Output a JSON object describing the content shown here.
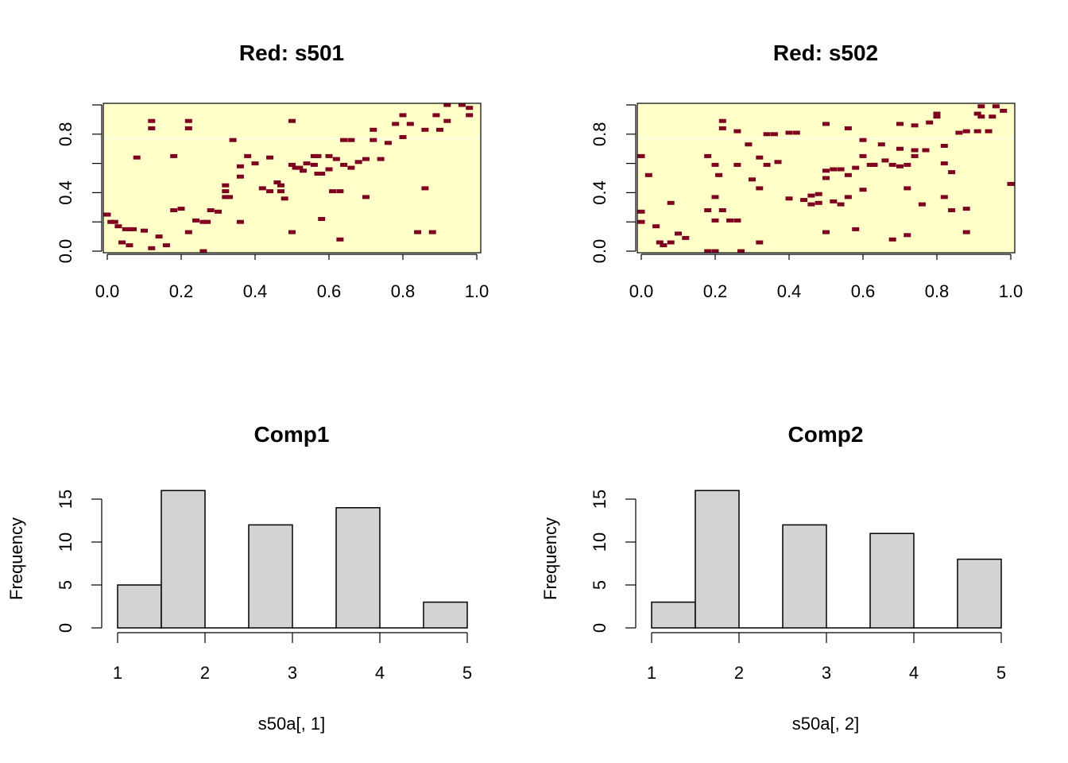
{
  "chart_data": [
    {
      "type": "heatmap",
      "title": "Red: s501",
      "xlim": [
        0,
        1
      ],
      "ylim": [
        0,
        1
      ],
      "x_ticks": [
        0.0,
        0.2,
        0.4,
        0.6,
        0.8,
        1.0
      ],
      "x_tick_labels": [
        "0.0",
        "0.2",
        "0.4",
        "0.6",
        "0.8",
        "1.0"
      ],
      "y_ticks": [
        0.0,
        0.4,
        0.8
      ],
      "y_tick_labels": [
        "0.0",
        "0.4",
        "0.8"
      ],
      "colors": {
        "background": "#ffffc8",
        "mark": "#800020"
      },
      "marks": [
        [
          0.0,
          0.25
        ],
        [
          0.01,
          0.2
        ],
        [
          0.02,
          0.2
        ],
        [
          0.03,
          0.17
        ],
        [
          0.05,
          0.15
        ],
        [
          0.06,
          0.15
        ],
        [
          0.07,
          0.15
        ],
        [
          0.04,
          0.06
        ],
        [
          0.06,
          0.04
        ],
        [
          0.08,
          0.64
        ],
        [
          0.1,
          0.14
        ],
        [
          0.12,
          0.89
        ],
        [
          0.12,
          0.84
        ],
        [
          0.12,
          0.02
        ],
        [
          0.14,
          0.1
        ],
        [
          0.16,
          0.04
        ],
        [
          0.18,
          0.65
        ],
        [
          0.18,
          0.28
        ],
        [
          0.2,
          0.29
        ],
        [
          0.22,
          0.89
        ],
        [
          0.22,
          0.84
        ],
        [
          0.22,
          0.13
        ],
        [
          0.24,
          0.21
        ],
        [
          0.26,
          0.2
        ],
        [
          0.27,
          0.2
        ],
        [
          0.26,
          0.0
        ],
        [
          0.28,
          0.28
        ],
        [
          0.3,
          0.27
        ],
        [
          0.32,
          0.45
        ],
        [
          0.32,
          0.41
        ],
        [
          0.32,
          0.37
        ],
        [
          0.33,
          0.37
        ],
        [
          0.34,
          0.76
        ],
        [
          0.36,
          0.58
        ],
        [
          0.36,
          0.51
        ],
        [
          0.36,
          0.2
        ],
        [
          0.38,
          0.65
        ],
        [
          0.4,
          0.6
        ],
        [
          0.42,
          0.43
        ],
        [
          0.44,
          0.64
        ],
        [
          0.44,
          0.41
        ],
        [
          0.46,
          0.47
        ],
        [
          0.47,
          0.45
        ],
        [
          0.47,
          0.41
        ],
        [
          0.48,
          0.36
        ],
        [
          0.5,
          0.89
        ],
        [
          0.5,
          0.59
        ],
        [
          0.5,
          0.13
        ],
        [
          0.51,
          0.57
        ],
        [
          0.52,
          0.57
        ],
        [
          0.53,
          0.55
        ],
        [
          0.54,
          0.6
        ],
        [
          0.56,
          0.65
        ],
        [
          0.57,
          0.65
        ],
        [
          0.56,
          0.59
        ],
        [
          0.57,
          0.53
        ],
        [
          0.58,
          0.53
        ],
        [
          0.58,
          0.22
        ],
        [
          0.6,
          0.65
        ],
        [
          0.6,
          0.56
        ],
        [
          0.61,
          0.41
        ],
        [
          0.62,
          0.63
        ],
        [
          0.63,
          0.41
        ],
        [
          0.63,
          0.08
        ],
        [
          0.64,
          0.76
        ],
        [
          0.64,
          0.59
        ],
        [
          0.66,
          0.76
        ],
        [
          0.66,
          0.57
        ],
        [
          0.68,
          0.61
        ],
        [
          0.7,
          0.63
        ],
        [
          0.7,
          0.37
        ],
        [
          0.72,
          0.83
        ],
        [
          0.72,
          0.76
        ],
        [
          0.74,
          0.63
        ],
        [
          0.76,
          0.74
        ],
        [
          0.78,
          0.87
        ],
        [
          0.8,
          0.93
        ],
        [
          0.8,
          0.78
        ],
        [
          0.82,
          0.87
        ],
        [
          0.84,
          0.13
        ],
        [
          0.86,
          0.83
        ],
        [
          0.86,
          0.43
        ],
        [
          0.88,
          0.13
        ],
        [
          0.89,
          0.93
        ],
        [
          0.9,
          0.83
        ],
        [
          0.92,
          1.0
        ],
        [
          0.92,
          0.89
        ],
        [
          0.96,
          1.0
        ],
        [
          0.98,
          0.98
        ],
        [
          0.98,
          0.93
        ]
      ]
    },
    {
      "type": "heatmap",
      "title": "Red: s502",
      "xlim": [
        0,
        1
      ],
      "ylim": [
        0,
        1
      ],
      "x_ticks": [
        0.0,
        0.2,
        0.4,
        0.6,
        0.8,
        1.0
      ],
      "x_tick_labels": [
        "0.0",
        "0.2",
        "0.4",
        "0.6",
        "0.8",
        "1.0"
      ],
      "y_ticks": [
        0.0,
        0.4,
        0.8
      ],
      "y_tick_labels": [
        "0.0",
        "0.4",
        "0.8"
      ],
      "colors": {
        "background": "#ffffc8",
        "mark": "#800020"
      },
      "marks": [
        [
          0.0,
          0.65
        ],
        [
          0.0,
          0.27
        ],
        [
          0.0,
          0.2
        ],
        [
          0.02,
          0.52
        ],
        [
          0.04,
          0.17
        ],
        [
          0.05,
          0.06
        ],
        [
          0.06,
          0.04
        ],
        [
          0.08,
          0.33
        ],
        [
          0.08,
          0.06
        ],
        [
          0.1,
          0.12
        ],
        [
          0.12,
          0.09
        ],
        [
          0.18,
          0.65
        ],
        [
          0.18,
          0.28
        ],
        [
          0.18,
          0.0
        ],
        [
          0.2,
          0.59
        ],
        [
          0.2,
          0.37
        ],
        [
          0.2,
          0.21
        ],
        [
          0.2,
          0.0
        ],
        [
          0.21,
          0.52
        ],
        [
          0.22,
          0.89
        ],
        [
          0.22,
          0.84
        ],
        [
          0.22,
          0.28
        ],
        [
          0.24,
          0.21
        ],
        [
          0.26,
          0.82
        ],
        [
          0.26,
          0.59
        ],
        [
          0.26,
          0.21
        ],
        [
          0.27,
          0.0
        ],
        [
          0.29,
          0.73
        ],
        [
          0.3,
          0.49
        ],
        [
          0.32,
          0.64
        ],
        [
          0.32,
          0.43
        ],
        [
          0.32,
          0.06
        ],
        [
          0.34,
          0.8
        ],
        [
          0.34,
          0.59
        ],
        [
          0.36,
          0.8
        ],
        [
          0.37,
          0.61
        ],
        [
          0.4,
          0.81
        ],
        [
          0.4,
          0.36
        ],
        [
          0.42,
          0.81
        ],
        [
          0.44,
          0.35
        ],
        [
          0.46,
          0.38
        ],
        [
          0.46,
          0.32
        ],
        [
          0.48,
          0.39
        ],
        [
          0.48,
          0.33
        ],
        [
          0.5,
          0.87
        ],
        [
          0.5,
          0.55
        ],
        [
          0.5,
          0.5
        ],
        [
          0.5,
          0.13
        ],
        [
          0.52,
          0.56
        ],
        [
          0.52,
          0.34
        ],
        [
          0.54,
          0.56
        ],
        [
          0.54,
          0.32
        ],
        [
          0.56,
          0.84
        ],
        [
          0.56,
          0.52
        ],
        [
          0.56,
          0.37
        ],
        [
          0.58,
          0.57
        ],
        [
          0.58,
          0.15
        ],
        [
          0.6,
          0.76
        ],
        [
          0.6,
          0.65
        ],
        [
          0.6,
          0.42
        ],
        [
          0.62,
          0.59
        ],
        [
          0.63,
          0.59
        ],
        [
          0.63,
          0.59
        ],
        [
          0.65,
          0.73
        ],
        [
          0.66,
          0.62
        ],
        [
          0.68,
          0.59
        ],
        [
          0.68,
          0.08
        ],
        [
          0.7,
          0.87
        ],
        [
          0.7,
          0.7
        ],
        [
          0.7,
          0.58
        ],
        [
          0.72,
          0.59
        ],
        [
          0.72,
          0.43
        ],
        [
          0.72,
          0.11
        ],
        [
          0.74,
          0.86
        ],
        [
          0.74,
          0.69
        ],
        [
          0.74,
          0.65
        ],
        [
          0.76,
          0.32
        ],
        [
          0.77,
          0.69
        ],
        [
          0.78,
          0.88
        ],
        [
          0.8,
          0.94
        ],
        [
          0.8,
          0.92
        ],
        [
          0.82,
          0.72
        ],
        [
          0.82,
          0.6
        ],
        [
          0.82,
          0.37
        ],
        [
          0.84,
          0.54
        ],
        [
          0.84,
          0.28
        ],
        [
          0.86,
          0.81
        ],
        [
          0.88,
          0.82
        ],
        [
          0.88,
          0.29
        ],
        [
          0.88,
          0.13
        ],
        [
          0.91,
          0.94
        ],
        [
          0.91,
          0.82
        ],
        [
          0.92,
          0.99
        ],
        [
          0.92,
          0.92
        ],
        [
          0.94,
          0.82
        ],
        [
          0.95,
          0.92
        ],
        [
          0.96,
          0.99
        ],
        [
          0.98,
          0.96
        ],
        [
          1.0,
          0.46
        ]
      ]
    },
    {
      "type": "bar",
      "title": "Comp1",
      "xlabel": "s50a[, 1]",
      "ylabel": "Frequency",
      "bins": [
        [
          1.0,
          1.5
        ],
        [
          1.5,
          2.0
        ],
        [
          2.0,
          2.5
        ],
        [
          2.5,
          3.0
        ],
        [
          3.0,
          3.5
        ],
        [
          3.5,
          4.0
        ],
        [
          4.0,
          4.5
        ],
        [
          4.5,
          5.0
        ]
      ],
      "values": [
        5,
        16,
        0,
        12,
        0,
        14,
        0,
        3
      ],
      "xlim": [
        1,
        5
      ],
      "ylim": [
        0,
        15
      ],
      "x_ticks": [
        1,
        2,
        3,
        4,
        5
      ],
      "x_tick_labels": [
        "1",
        "2",
        "3",
        "4",
        "5"
      ],
      "y_ticks": [
        0,
        5,
        10,
        15
      ],
      "y_tick_labels": [
        "0",
        "5",
        "10",
        "15"
      ],
      "colors": {
        "bar": "#d3d3d3"
      }
    },
    {
      "type": "bar",
      "title": "Comp2",
      "xlabel": "s50a[, 2]",
      "ylabel": "Frequency",
      "bins": [
        [
          1.0,
          1.5
        ],
        [
          1.5,
          2.0
        ],
        [
          2.0,
          2.5
        ],
        [
          2.5,
          3.0
        ],
        [
          3.0,
          3.5
        ],
        [
          3.5,
          4.0
        ],
        [
          4.0,
          4.5
        ],
        [
          4.5,
          5.0
        ]
      ],
      "values": [
        3,
        16,
        0,
        12,
        0,
        11,
        0,
        8
      ],
      "xlim": [
        1,
        5
      ],
      "ylim": [
        0,
        15
      ],
      "x_ticks": [
        1,
        2,
        3,
        4,
        5
      ],
      "x_tick_labels": [
        "1",
        "2",
        "3",
        "4",
        "5"
      ],
      "y_ticks": [
        0,
        5,
        10,
        15
      ],
      "y_tick_labels": [
        "0",
        "5",
        "10",
        "15"
      ],
      "colors": {
        "bar": "#d3d3d3"
      }
    }
  ]
}
